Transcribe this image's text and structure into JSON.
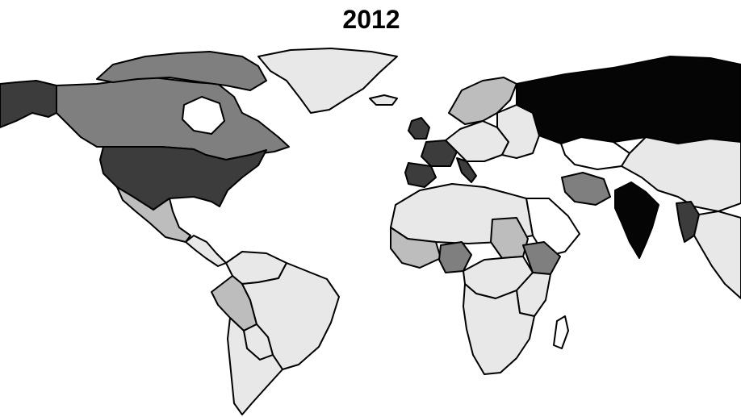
{
  "title": "2012",
  "shades": {
    "black": "#050505",
    "dark": "#3c3c3c",
    "mid": "#7f7f7f",
    "light": "#bdbdbd",
    "pale": "#e8e8e8",
    "none": "#ffffff"
  },
  "regions": [
    {
      "name": "alaska",
      "shade": "dark"
    },
    {
      "name": "canada",
      "shade": "mid"
    },
    {
      "name": "canadian-arctic-islands",
      "shade": "mid"
    },
    {
      "name": "greenland",
      "shade": "pale"
    },
    {
      "name": "united-states",
      "shade": "dark"
    },
    {
      "name": "mexico",
      "shade": "light"
    },
    {
      "name": "central-america",
      "shade": "pale"
    },
    {
      "name": "colombia-venezuela",
      "shade": "pale"
    },
    {
      "name": "peru",
      "shade": "light"
    },
    {
      "name": "brazil",
      "shade": "pale"
    },
    {
      "name": "bolivia-paraguay",
      "shade": "pale"
    },
    {
      "name": "argentina-chile",
      "shade": "pale"
    },
    {
      "name": "iceland",
      "shade": "pale"
    },
    {
      "name": "scandinavia",
      "shade": "light"
    },
    {
      "name": "united-kingdom",
      "shade": "dark"
    },
    {
      "name": "france",
      "shade": "dark"
    },
    {
      "name": "spain",
      "shade": "dark"
    },
    {
      "name": "italy",
      "shade": "dark"
    },
    {
      "name": "central-europe",
      "shade": "pale"
    },
    {
      "name": "eastern-europe",
      "shade": "pale"
    },
    {
      "name": "russia",
      "shade": "black"
    },
    {
      "name": "kazakhstan",
      "shade": "none"
    },
    {
      "name": "china",
      "shade": "pale"
    },
    {
      "name": "iran",
      "shade": "mid"
    },
    {
      "name": "india",
      "shade": "black"
    },
    {
      "name": "myanmar",
      "shade": "dark"
    },
    {
      "name": "southeast-asia",
      "shade": "pale"
    },
    {
      "name": "arabian-peninsula",
      "shade": "none"
    },
    {
      "name": "north-africa",
      "shade": "pale"
    },
    {
      "name": "sahel",
      "shade": "light"
    },
    {
      "name": "nigeria",
      "shade": "mid"
    },
    {
      "name": "sudan",
      "shade": "light"
    },
    {
      "name": "ethiopia",
      "shade": "mid"
    },
    {
      "name": "central-africa",
      "shade": "pale"
    },
    {
      "name": "east-africa",
      "shade": "pale"
    },
    {
      "name": "southern-africa",
      "shade": "pale"
    },
    {
      "name": "madagascar",
      "shade": "none"
    }
  ]
}
